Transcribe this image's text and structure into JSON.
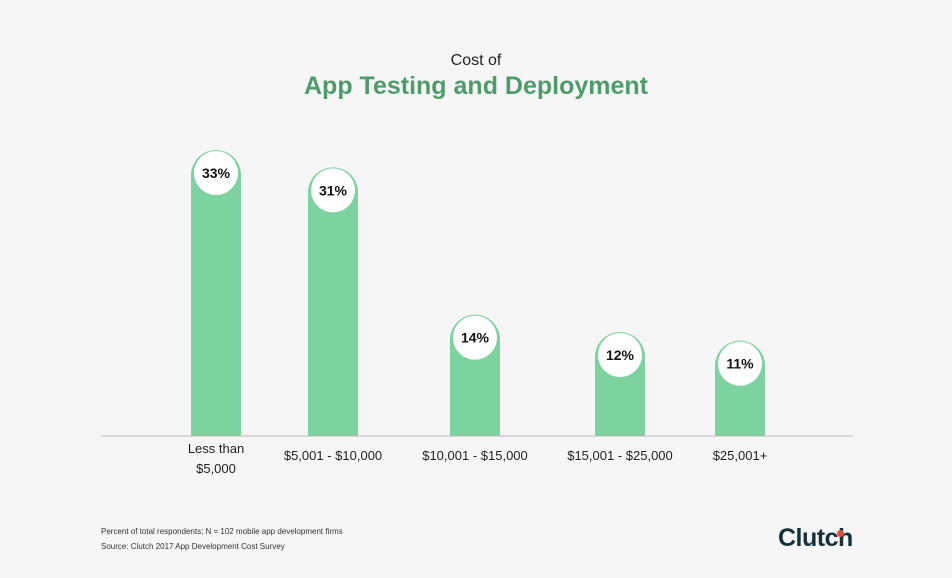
{
  "header": {
    "pre_title": "Cost of",
    "title": "App Testing and Deployment"
  },
  "colors": {
    "bar": "#7dd3a0",
    "title": "#4e9c6a",
    "axis": "#b5b5b5",
    "bubble": "#ffffff",
    "logo_dot": "#e64b3c"
  },
  "chart_data": {
    "type": "bar",
    "categories": [
      [
        "Less than",
        "$5,000"
      ],
      [
        "$5,001 - $10,000"
      ],
      [
        "$10,001 - $15,000"
      ],
      [
        "$15,001 - $25,000"
      ],
      [
        "$25,001+"
      ]
    ],
    "values": [
      33,
      31,
      14,
      12,
      11
    ],
    "data_labels": [
      "33%",
      "31%",
      "14%",
      "12%",
      "11%"
    ],
    "unit": "%",
    "ylim": [
      0,
      33
    ],
    "grid": false
  },
  "footer": {
    "note": "Percent of total respondents; N = 102 mobile app development firms",
    "source": "Source: Clutch 2017 App Development Cost Survey",
    "logo": "Clutch"
  }
}
